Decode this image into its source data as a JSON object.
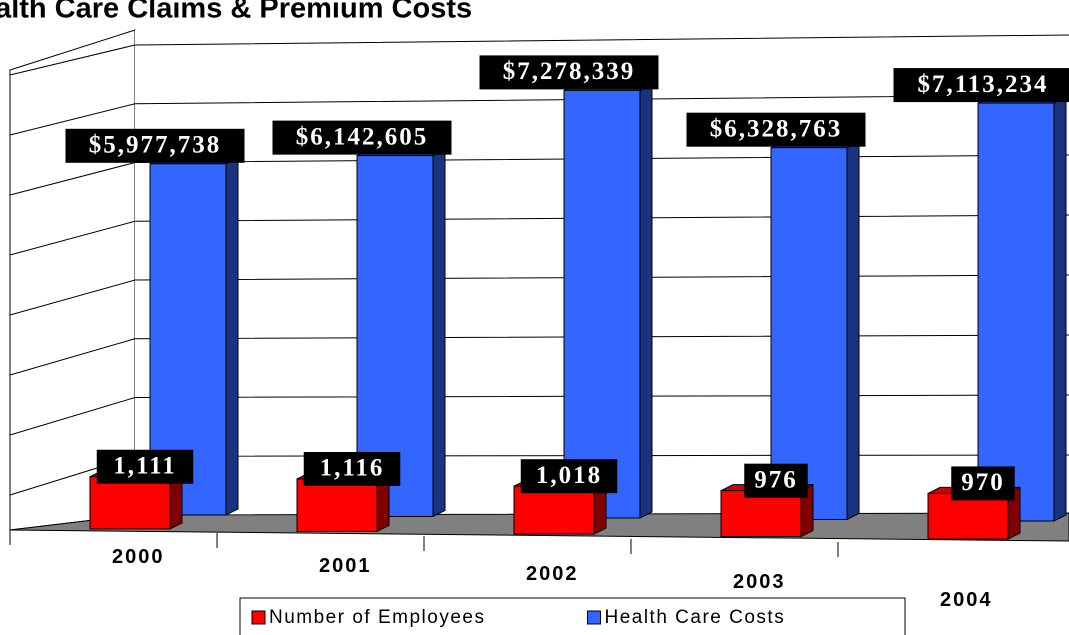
{
  "chart_data": {
    "type": "bar3d",
    "title": "Health Care Claims & Premium Costs",
    "categories": [
      "2000",
      "2001",
      "2002",
      "2003",
      "2004"
    ],
    "series": [
      {
        "name": "Number of Employees",
        "color": "#ff0000",
        "axis": "y2",
        "values": [
          1111,
          1116,
          1018,
          976,
          970
        ],
        "value_labels": [
          "1,111",
          "1,116",
          "1,018",
          "976",
          "970"
        ]
      },
      {
        "name": "Health Care Costs",
        "color": "#3366ff",
        "values": [
          5977738,
          6142605,
          7278339,
          6328763,
          7113234
        ],
        "value_labels": [
          "$5,977,738",
          "$6,142,605",
          "$7,278,339",
          "$6,328,763",
          "$7,113,234"
        ]
      }
    ],
    "ylim": [
      0,
      8000000
    ],
    "yticks": [
      0,
      1000000,
      2000000,
      3000000,
      4000000,
      5000000,
      6000000,
      7000000,
      8000000
    ],
    "y2lim": [
      0,
      10000
    ],
    "grid": true,
    "legend": "bottom"
  }
}
